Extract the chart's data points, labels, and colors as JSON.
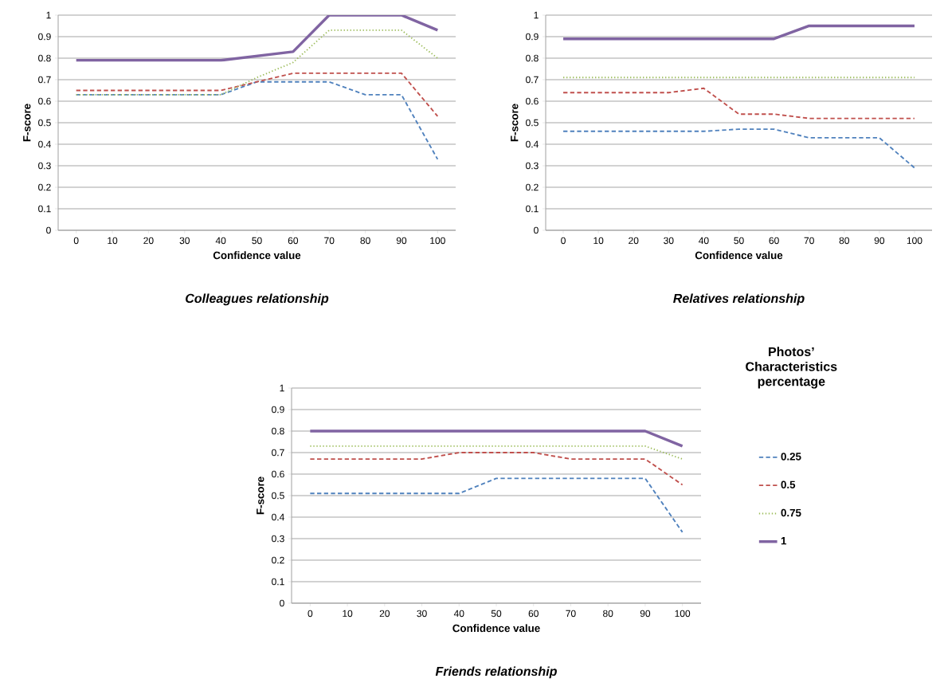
{
  "chart_data": [
    {
      "type": "line",
      "title": "Colleagues relationship",
      "xlabel": "Confidence value",
      "ylabel": "F-score",
      "categories": [
        "0",
        "10",
        "20",
        "30",
        "40",
        "50",
        "60",
        "70",
        "80",
        "90",
        "100"
      ],
      "ylim": [
        0,
        1
      ],
      "yticks": [
        0,
        0.1,
        0.2,
        0.3,
        0.4,
        0.5,
        0.6,
        0.7,
        0.8,
        0.9,
        1
      ],
      "grid": "y",
      "legend": false,
      "series": [
        {
          "color": "#4f81bd",
          "line_style": "dashed",
          "values": [
            0.63,
            0.63,
            0.63,
            0.63,
            0.63,
            0.69,
            0.69,
            0.69,
            0.63,
            0.63,
            0.33
          ]
        },
        {
          "color": "#c0504d",
          "line_style": "dashed",
          "values": [
            0.65,
            0.65,
            0.65,
            0.65,
            0.65,
            0.69,
            0.73,
            0.73,
            0.73,
            0.73,
            0.53
          ]
        },
        {
          "color": "#9bbb59",
          "line_style": "dotted",
          "values": [
            0.63,
            0.63,
            0.63,
            0.63,
            0.63,
            0.71,
            0.78,
            0.93,
            0.93,
            0.93,
            0.8
          ]
        },
        {
          "color": "#8064a2",
          "line_style": "solid",
          "values": [
            0.79,
            0.79,
            0.79,
            0.79,
            0.79,
            0.81,
            0.83,
            1,
            1,
            1,
            0.93
          ]
        }
      ]
    },
    {
      "type": "line",
      "title": "Relatives relationship",
      "xlabel": "Confidence value",
      "ylabel": "F-score",
      "categories": [
        "0",
        "10",
        "20",
        "30",
        "40",
        "50",
        "60",
        "70",
        "80",
        "90",
        "100"
      ],
      "ylim": [
        0,
        1
      ],
      "yticks": [
        0,
        0.1,
        0.2,
        0.3,
        0.4,
        0.5,
        0.6,
        0.7,
        0.8,
        0.9,
        1
      ],
      "grid": "y",
      "legend": false,
      "series": [
        {
          "color": "#4f81bd",
          "line_style": "dashed",
          "values": [
            0.46,
            0.46,
            0.46,
            0.46,
            0.46,
            0.47,
            0.47,
            0.43,
            0.43,
            0.43,
            0.29
          ]
        },
        {
          "color": "#c0504d",
          "line_style": "dashed",
          "values": [
            0.64,
            0.64,
            0.64,
            0.64,
            0.66,
            0.54,
            0.54,
            0.52,
            0.52,
            0.52,
            0.52
          ]
        },
        {
          "color": "#9bbb59",
          "line_style": "dotted",
          "values": [
            0.71,
            0.71,
            0.71,
            0.71,
            0.71,
            0.71,
            0.71,
            0.71,
            0.71,
            0.71,
            0.71
          ]
        },
        {
          "color": "#8064a2",
          "line_style": "solid",
          "values": [
            0.89,
            0.89,
            0.89,
            0.89,
            0.89,
            0.89,
            0.89,
            0.95,
            0.95,
            0.95,
            0.95
          ]
        }
      ]
    },
    {
      "type": "line",
      "title": "Friends relationship",
      "xlabel": "Confidence value",
      "ylabel": "F-score",
      "legend_title": "Photos’ Characteristics percentage",
      "categories": [
        "0",
        "10",
        "20",
        "30",
        "40",
        "50",
        "60",
        "70",
        "80",
        "90",
        "100"
      ],
      "ylim": [
        0,
        1
      ],
      "yticks": [
        0,
        0.1,
        0.2,
        0.3,
        0.4,
        0.5,
        0.6,
        0.7,
        0.8,
        0.9,
        1
      ],
      "grid": "y",
      "legend": "right",
      "series": [
        {
          "name": "0.25",
          "color": "#4f81bd",
          "line_style": "dashed",
          "values": [
            0.51,
            0.51,
            0.51,
            0.51,
            0.51,
            0.58,
            0.58,
            0.58,
            0.58,
            0.58,
            0.33
          ]
        },
        {
          "name": "0.5",
          "color": "#c0504d",
          "line_style": "dashed",
          "values": [
            0.67,
            0.67,
            0.67,
            0.67,
            0.7,
            0.7,
            0.7,
            0.67,
            0.67,
            0.67,
            0.55
          ]
        },
        {
          "name": "0.75",
          "color": "#9bbb59",
          "line_style": "dotted",
          "values": [
            0.73,
            0.73,
            0.73,
            0.73,
            0.73,
            0.73,
            0.73,
            0.73,
            0.73,
            0.73,
            0.67
          ]
        },
        {
          "name": "1",
          "color": "#8064a2",
          "line_style": "solid",
          "values": [
            0.8,
            0.8,
            0.8,
            0.8,
            0.8,
            0.8,
            0.8,
            0.8,
            0.8,
            0.8,
            0.73
          ]
        }
      ]
    }
  ]
}
